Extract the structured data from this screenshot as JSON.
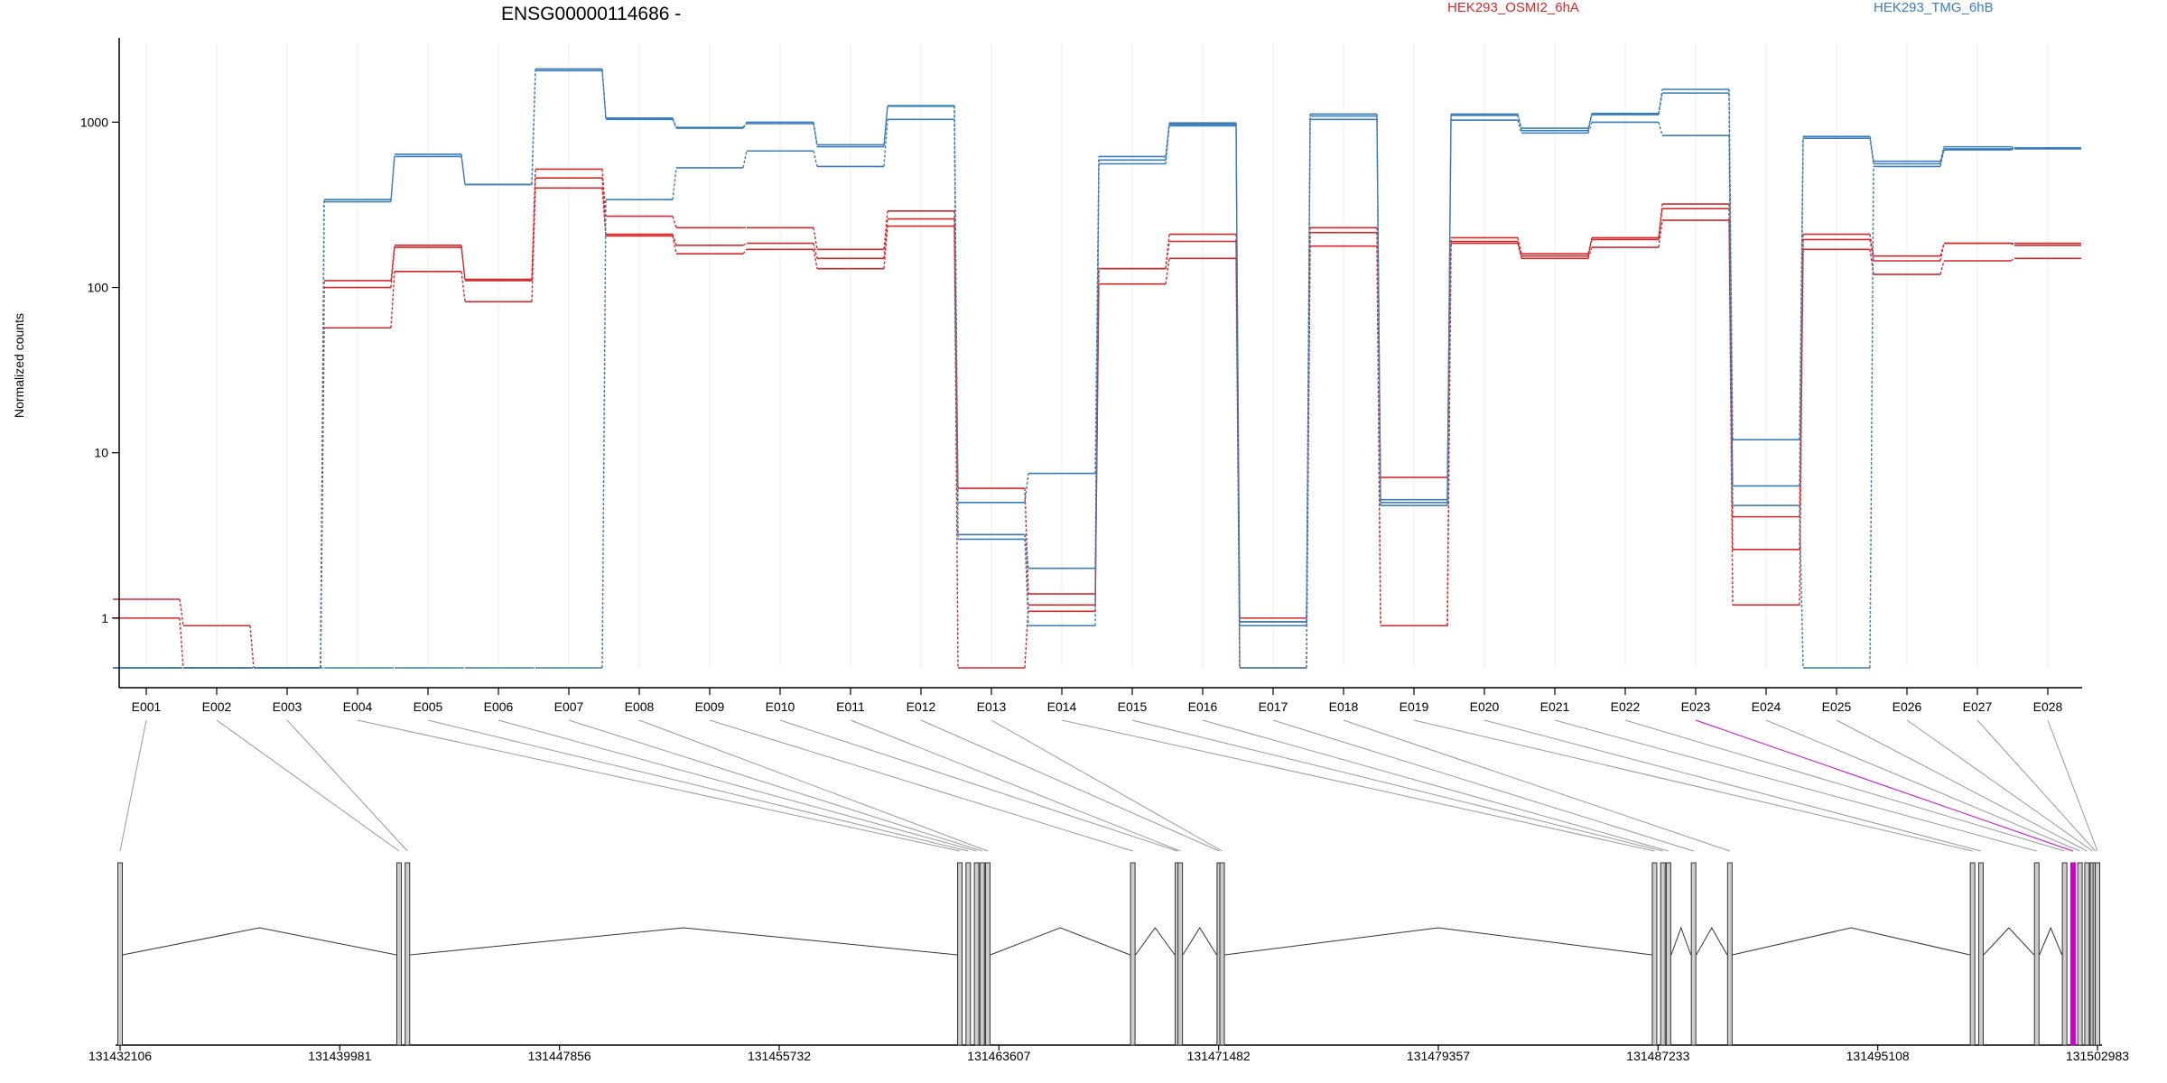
{
  "chart_data": {
    "type": "line",
    "title": "ENSG00000114686 -",
    "ylabel": "Normalized counts",
    "xlabel": "",
    "yscale": "log",
    "ylim": [
      0.5,
      3000
    ],
    "y_ticks": [
      1,
      10,
      100,
      1000
    ],
    "y_tick_labels": [
      "1",
      "10",
      "100",
      "1000"
    ],
    "categories": [
      "E001",
      "E002",
      "E003",
      "E004",
      "E005",
      "E006",
      "E007",
      "E008",
      "E009",
      "E010",
      "E011",
      "E012",
      "E013",
      "E014",
      "E015",
      "E016",
      "E017",
      "E018",
      "E019",
      "E020",
      "E021",
      "E022",
      "E023",
      "E024",
      "E025",
      "E026",
      "E027",
      "E028"
    ],
    "colors": {
      "HEK293_OSMI2_6hA": "#d62728",
      "HEK293_TMG_6hB": "#3a7db8",
      "highlight": "#cc00cc"
    },
    "legend": [
      {
        "name": "HEK293_OSMI2_6hA",
        "color": "#d62728"
      },
      {
        "name": "HEK293_TMG_6hB",
        "color": "#3a7db8"
      }
    ],
    "series": [
      {
        "group": "HEK293_OSMI2_6hA",
        "values": [
          1.3,
          0.9,
          0.5,
          110,
          180,
          110,
          520,
          270,
          230,
          230,
          170,
          290,
          6.1,
          1.4,
          130,
          210,
          1.0,
          230,
          7.1,
          200,
          160,
          200,
          320,
          4.1,
          210,
          155,
          185,
          185
        ]
      },
      {
        "group": "HEK293_OSMI2_6hA",
        "values": [
          1.0,
          0.5,
          0.5,
          100,
          175,
          112,
          460,
          210,
          180,
          185,
          150,
          260,
          3.2,
          1.1,
          130,
          190,
          0.95,
          215,
          0.9,
          190,
          155,
          195,
          300,
          2.6,
          195,
          145,
          185,
          180
        ]
      },
      {
        "group": "HEK293_OSMI2_6hA",
        "values": [
          0.5,
          0.5,
          0.5,
          57,
          125,
          82,
          400,
          205,
          160,
          170,
          130,
          235,
          0.5,
          1.2,
          105,
          150,
          0.5,
          178,
          0.9,
          185,
          150,
          175,
          255,
          1.2,
          170,
          120,
          145,
          150
        ]
      },
      {
        "group": "HEK293_TMG_6hB",
        "values": [
          0.5,
          0.5,
          0.5,
          340,
          640,
          420,
          2100,
          1060,
          930,
          1000,
          730,
          1260,
          5.0,
          7.5,
          620,
          990,
          0.95,
          1120,
          5.2,
          1120,
          920,
          1130,
          1580,
          12,
          820,
          580,
          710,
          700
        ]
      },
      {
        "group": "HEK293_TMG_6hB",
        "values": [
          0.5,
          0.5,
          0.5,
          330,
          620,
          420,
          2050,
          1040,
          920,
          980,
          710,
          1250,
          3.2,
          2.0,
          590,
          970,
          0.9,
          1090,
          5.0,
          1100,
          890,
          1110,
          1500,
          6.3,
          800,
          560,
          690,
          700
        ]
      },
      {
        "group": "HEK293_TMG_6hB",
        "values": [
          0.5,
          0.5,
          0.5,
          0.5,
          0.5,
          0.5,
          0.5,
          340,
          530,
          670,
          540,
          1040,
          3.0,
          0.9,
          560,
          950,
          0.5,
          1040,
          4.8,
          1030,
          860,
          1000,
          830,
          4.8,
          0.5,
          540,
          680,
          690
        ]
      }
    ],
    "genomic_coordinates": [
      131432106,
      131439981,
      131447856,
      131455732,
      131463607,
      131471482,
      131479357,
      131487233,
      131495108,
      131502983
    ],
    "exon_positions": [
      131432106,
      131442106,
      131442406,
      131462206,
      131462506,
      131462806,
      131463006,
      131463206,
      131468406,
      131470006,
      131470106,
      131471506,
      131471606,
      131487106,
      131487406,
      131487606,
      131488506,
      131489806,
      131498506,
      131498806,
      131500806,
      131501806,
      131502106,
      131502356,
      131502606,
      131502806,
      131502906,
      131502983
    ],
    "highlighted_exon": "E023"
  }
}
